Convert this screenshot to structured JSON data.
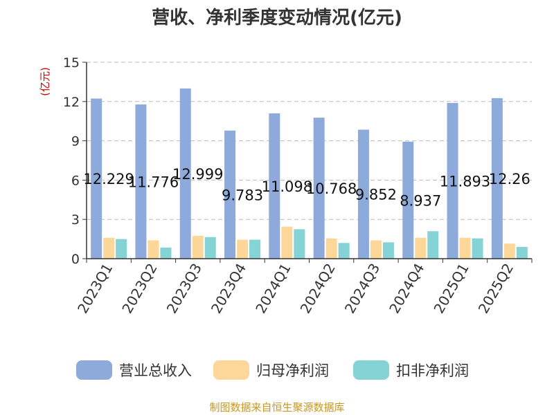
{
  "chart_data": {
    "type": "bar",
    "title": "营收、净利季度变动情况(亿元)",
    "unit_label": "(亿元)",
    "categories": [
      "2023Q1",
      "2023Q2",
      "2023Q3",
      "2023Q4",
      "2024Q1",
      "2024Q2",
      "2024Q3",
      "2024Q4",
      "2025Q1",
      "2025Q2"
    ],
    "series": [
      {
        "name": "营业总收入",
        "color": "#8eaadb",
        "values": [
          12.229,
          11.776,
          12.999,
          9.783,
          11.098,
          10.768,
          9.852,
          8.937,
          11.893,
          12.26
        ],
        "data_labels": [
          "12.229",
          "11.776",
          "12.999",
          "9.783",
          "11.098",
          "10.768",
          "9.852",
          "8.937",
          "11.893",
          "12.26"
        ]
      },
      {
        "name": "归母净利润",
        "color": "#fdd79a",
        "values": [
          1.6,
          1.4,
          1.75,
          1.45,
          2.45,
          1.55,
          1.4,
          1.6,
          1.6,
          1.15
        ]
      },
      {
        "name": "扣非净利润",
        "color": "#86d3d6",
        "values": [
          1.5,
          0.85,
          1.65,
          1.45,
          2.25,
          1.2,
          1.25,
          2.1,
          1.55,
          0.9
        ]
      }
    ],
    "ylim": [
      0,
      15
    ],
    "yticks": [
      "0",
      "3",
      "6",
      "9",
      "12",
      "15"
    ],
    "ytick_values": [
      0,
      3,
      6,
      9,
      12,
      15
    ],
    "grid": true,
    "legend_position": "bottom"
  },
  "source": "制图数据来自恒生聚源数据库"
}
